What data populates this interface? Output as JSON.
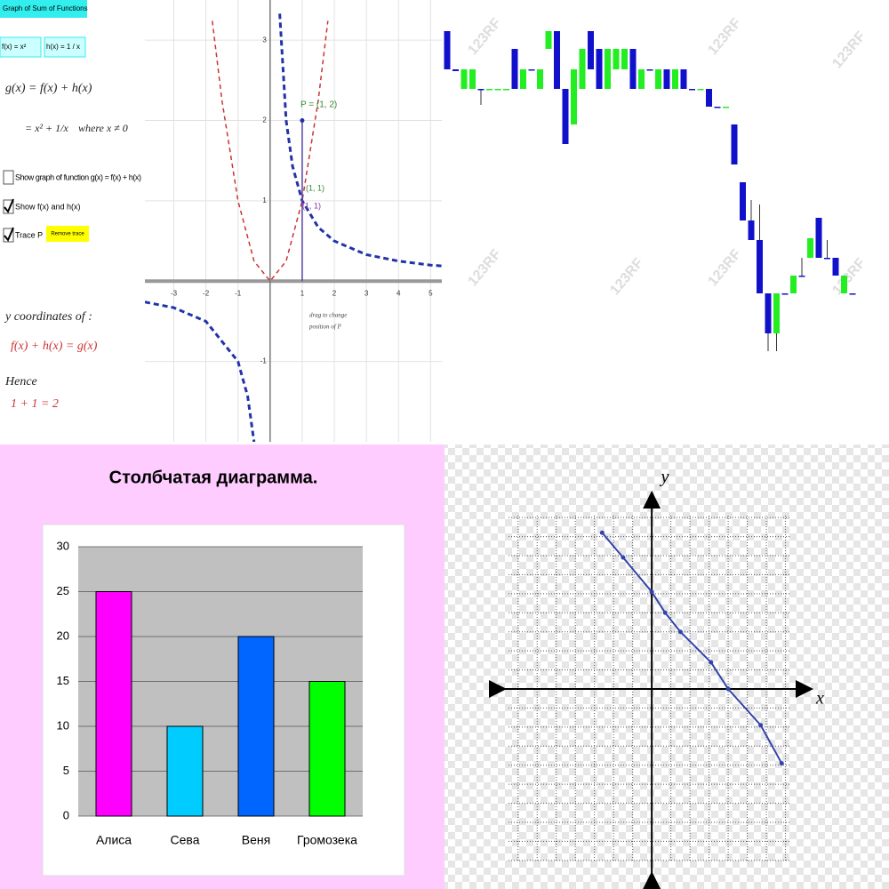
{
  "chart_data": [
    {
      "type": "line",
      "title": "Graph of Sum of Functions",
      "inputs": [
        "f(x) = x²",
        "h(x) = 1 / x"
      ],
      "formula": [
        "g(x) = f(x) + h(x)",
        "= x² + 1/x",
        "where x ≠ 0"
      ],
      "checkboxes": [
        "Show graph of function  g(x) = f(x) + h(x)",
        "Show f(x) and h(x)",
        "Trace P"
      ],
      "checked": [
        false,
        true,
        true
      ],
      "button": "Remove trace",
      "annotations": [
        "P = (1, 2)",
        "(1, 1)",
        "(1, 1)",
        "drag to change",
        "position of P"
      ],
      "notes": [
        "y coordinates of :",
        "f(x) + h(x) = g(x)",
        "Hence",
        "1 + 1 = 2"
      ],
      "p": {
        "x": 1,
        "y": 2
      },
      "series": [
        {
          "name": "f(x)",
          "color": "#cc3333",
          "x": [
            -1.8,
            -1.5,
            -1,
            -0.5,
            0,
            0.5,
            1,
            1.5,
            1.8
          ],
          "values": [
            3.24,
            2.25,
            1,
            0.25,
            0,
            0.25,
            1,
            2.25,
            3.24
          ]
        },
        {
          "name": "h(x)",
          "color": "#2233aa",
          "x": [
            -3.9,
            -3,
            -2,
            -1,
            -0.7,
            -0.5,
            0,
            0.3,
            0.5,
            0.7,
            1,
            1.5,
            2,
            3,
            4,
            5,
            5.35
          ],
          "values": [
            -0.26,
            -0.33,
            -0.5,
            -1,
            -1.43,
            -2,
            null,
            3.33,
            2,
            1.43,
            1,
            0.67,
            0.5,
            0.33,
            0.25,
            0.2,
            0.19
          ]
        }
      ],
      "xlim": [
        -3.9,
        5.35
      ],
      "ylim": [
        -2,
        3.5
      ],
      "xticks": [
        -3,
        -2,
        -1,
        1,
        2,
        3,
        4,
        5
      ],
      "yticks": [
        -1,
        1,
        2,
        3
      ],
      "grid": true
    },
    {
      "type": "candlestick",
      "watermark": "123RF",
      "up_color": "#22ee22",
      "down_color": "#1111cc",
      "open": [
        93,
        84.4,
        80,
        80,
        80,
        80,
        80,
        80,
        89,
        80,
        84.4,
        80,
        89,
        93,
        80,
        72,
        80,
        93,
        89,
        80,
        84.4,
        84.4,
        89,
        80,
        84.4,
        80,
        84.4,
        80,
        84.4,
        80,
        80,
        80,
        76,
        76,
        72,
        59,
        50.4,
        46,
        34,
        25,
        34,
        34,
        38,
        42,
        51,
        42,
        42,
        34,
        34
      ],
      "close": [
        84.4,
        84,
        84.4,
        84.4,
        79.8,
        80,
        80,
        80,
        80,
        84.4,
        84.2,
        84.4,
        93,
        80,
        67.6,
        84.4,
        89,
        84.4,
        80,
        89,
        89,
        89,
        80,
        84.4,
        84.2,
        84.4,
        80,
        84.4,
        80,
        79.8,
        80,
        76,
        75.8,
        76,
        63,
        50.4,
        46,
        34,
        25,
        34,
        33.8,
        38,
        37.8,
        46.4,
        42,
        41.8,
        38,
        38,
        33.8
      ],
      "high": [
        93,
        84.4,
        84.4,
        84.4,
        80,
        80,
        80,
        80,
        89,
        84.4,
        84.4,
        84.4,
        93,
        93,
        80,
        84.4,
        89,
        93,
        89,
        89,
        89,
        89,
        89,
        84.4,
        84.4,
        84.4,
        84.4,
        84.4,
        84.4,
        80,
        80,
        80,
        76,
        76,
        72,
        59,
        55,
        54,
        34,
        34,
        34,
        38,
        42,
        46.4,
        51,
        46,
        42,
        38,
        34
      ],
      "low": [
        84.4,
        84,
        80,
        80,
        76.4,
        80,
        80,
        80,
        80,
        80,
        84.2,
        80,
        89,
        80,
        67.6,
        72,
        80,
        84.4,
        80,
        80,
        84.4,
        84.4,
        80,
        80,
        84.2,
        80,
        80,
        80,
        80,
        79.8,
        80,
        76,
        75.8,
        76,
        63,
        50.4,
        46,
        34,
        21,
        21,
        33.8,
        34,
        37.8,
        42,
        42,
        41.8,
        38,
        34,
        33.8
      ],
      "ylim": [
        0,
        100
      ]
    },
    {
      "type": "bar",
      "title": "Столбчатая диаграмма.",
      "categories": [
        "Алиса",
        "Сева",
        "Веня",
        "Громозека"
      ],
      "values": [
        25,
        10,
        20,
        15
      ],
      "colors": [
        "#ff00ff",
        "#00ccff",
        "#0066ff",
        "#00ff00"
      ],
      "ylim": [
        0,
        30
      ],
      "yticks": [
        0,
        5,
        10,
        15,
        20,
        25,
        30
      ],
      "grid": true
    },
    {
      "type": "line",
      "xlabel": "x",
      "ylabel": "y",
      "color": "#3344aa",
      "x": [
        -2.6,
        -1.5,
        0,
        0.7,
        1.5,
        3.1,
        4,
        5.7,
        6.8
      ],
      "values": [
        8.2,
        6.9,
        5.1,
        4,
        3,
        1.4,
        0,
        -1.9,
        -3.9
      ],
      "xlim": [
        -7.5,
        7.3
      ],
      "ylim": [
        -9.1,
        9.1
      ],
      "grid": true
    }
  ]
}
